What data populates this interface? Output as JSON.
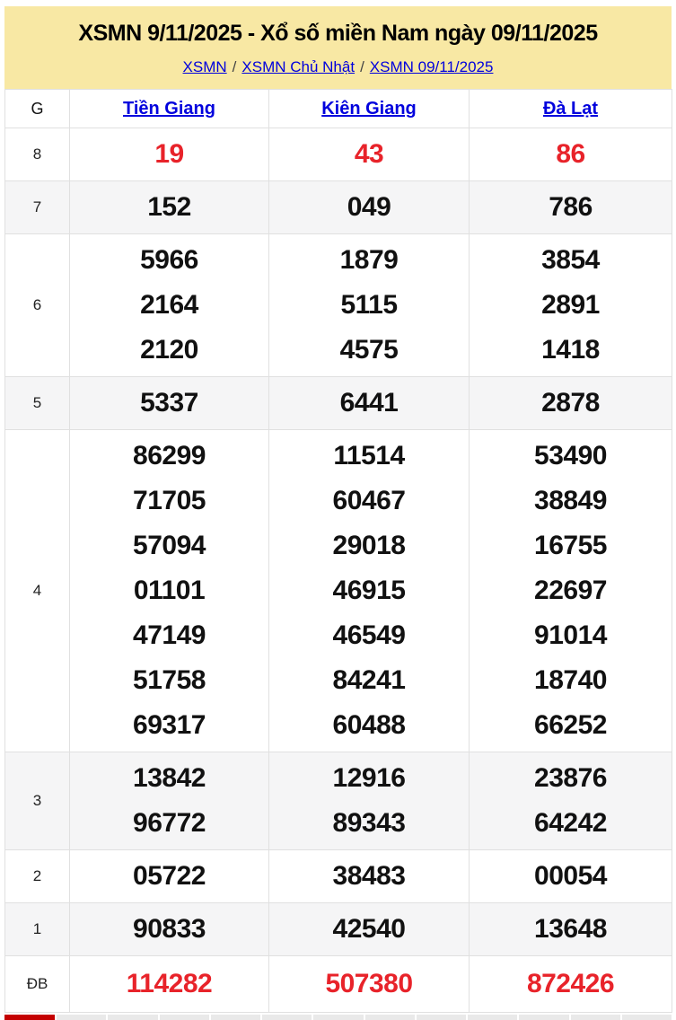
{
  "header": {
    "title": "XSMN 9/11/2025 - Xổ số miền Nam ngày 09/11/2025",
    "breadcrumb": [
      "XSMN",
      "XSMN Chủ Nhật",
      "XSMN 09/11/2025"
    ],
    "breadcrumb_separator": "/"
  },
  "table": {
    "corner_label": "G",
    "provinces": [
      "Tiền Giang",
      "Kiên Giang",
      "Đà Lạt"
    ],
    "rows": [
      {
        "prize": "8",
        "highlight": true,
        "values": [
          [
            "19"
          ],
          [
            "43"
          ],
          [
            "86"
          ]
        ]
      },
      {
        "prize": "7",
        "highlight": false,
        "values": [
          [
            "152"
          ],
          [
            "049"
          ],
          [
            "786"
          ]
        ]
      },
      {
        "prize": "6",
        "highlight": false,
        "values": [
          [
            "5966",
            "2164",
            "2120"
          ],
          [
            "1879",
            "5115",
            "4575"
          ],
          [
            "3854",
            "2891",
            "1418"
          ]
        ]
      },
      {
        "prize": "5",
        "highlight": false,
        "values": [
          [
            "5337"
          ],
          [
            "6441"
          ],
          [
            "2878"
          ]
        ]
      },
      {
        "prize": "4",
        "highlight": false,
        "values": [
          [
            "86299",
            "71705",
            "57094",
            "01101",
            "47149",
            "51758",
            "69317"
          ],
          [
            "11514",
            "60467",
            "29018",
            "46915",
            "46549",
            "84241",
            "60488"
          ],
          [
            "53490",
            "38849",
            "16755",
            "22697",
            "91014",
            "18740",
            "66252"
          ]
        ]
      },
      {
        "prize": "3",
        "highlight": false,
        "values": [
          [
            "13842",
            "96772"
          ],
          [
            "12916",
            "89343"
          ],
          [
            "23876",
            "64242"
          ]
        ]
      },
      {
        "prize": "2",
        "highlight": false,
        "values": [
          [
            "05722"
          ],
          [
            "38483"
          ],
          [
            "00054"
          ]
        ]
      },
      {
        "prize": "1",
        "highlight": false,
        "values": [
          [
            "90833"
          ],
          [
            "42540"
          ],
          [
            "13648"
          ]
        ]
      },
      {
        "prize": "ĐB",
        "highlight": true,
        "values": [
          [
            "114282"
          ],
          [
            "507380"
          ],
          [
            "872426"
          ]
        ]
      }
    ]
  },
  "next_section_peek": {
    "gray_cell_count": 12
  },
  "colors": {
    "header_bg": "#f8e8a4",
    "link_blue": "#0000dd",
    "number_red": "#e8232a",
    "row_alt_bg": "#f5f5f6",
    "border": "#e0e0e0",
    "peek_red": "#c40000",
    "peek_gray": "#e9e9e9"
  }
}
